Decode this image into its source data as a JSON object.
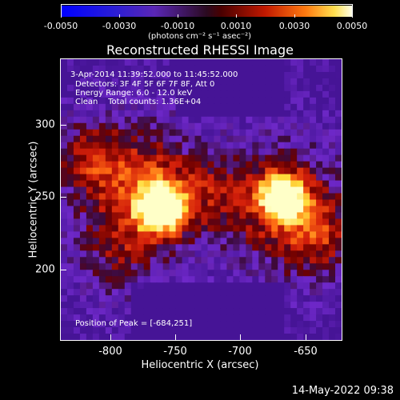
{
  "colorbar": {
    "ticks": [
      "-0.0050",
      "-0.0030",
      "-0.0010",
      "0.0010",
      "0.0030",
      "0.0050"
    ],
    "units": "(photons cm⁻² s⁻¹ asec⁻²)"
  },
  "title": "Reconstructed RHESSI Image",
  "info": {
    "time_range": "3-Apr-2014 11:39:52.000 to 11:45:52.000",
    "detectors": "Detectors: 3F 4F 5F 6F 7F 8F, Att 0",
    "energy": "Energy Range: 6.0 - 12.0 keV",
    "clean": "Clean    Total counts: 1.36E+04",
    "peak": "Position of Peak = [-684,251]"
  },
  "axes": {
    "x_ticks": [
      "-800",
      "-750",
      "-700",
      "-650"
    ],
    "y_ticks": [
      "300",
      "250",
      "200"
    ],
    "xlabel": "Heliocentric X (arcsec)",
    "ylabel": "Heliocentric Y (arcsec)"
  },
  "timestamp": "14-May-2022 09:38",
  "colors": {
    "background": "#000000",
    "low": "#6a2fc9",
    "mid": "#c8261c",
    "high": "#ffff8a"
  }
}
